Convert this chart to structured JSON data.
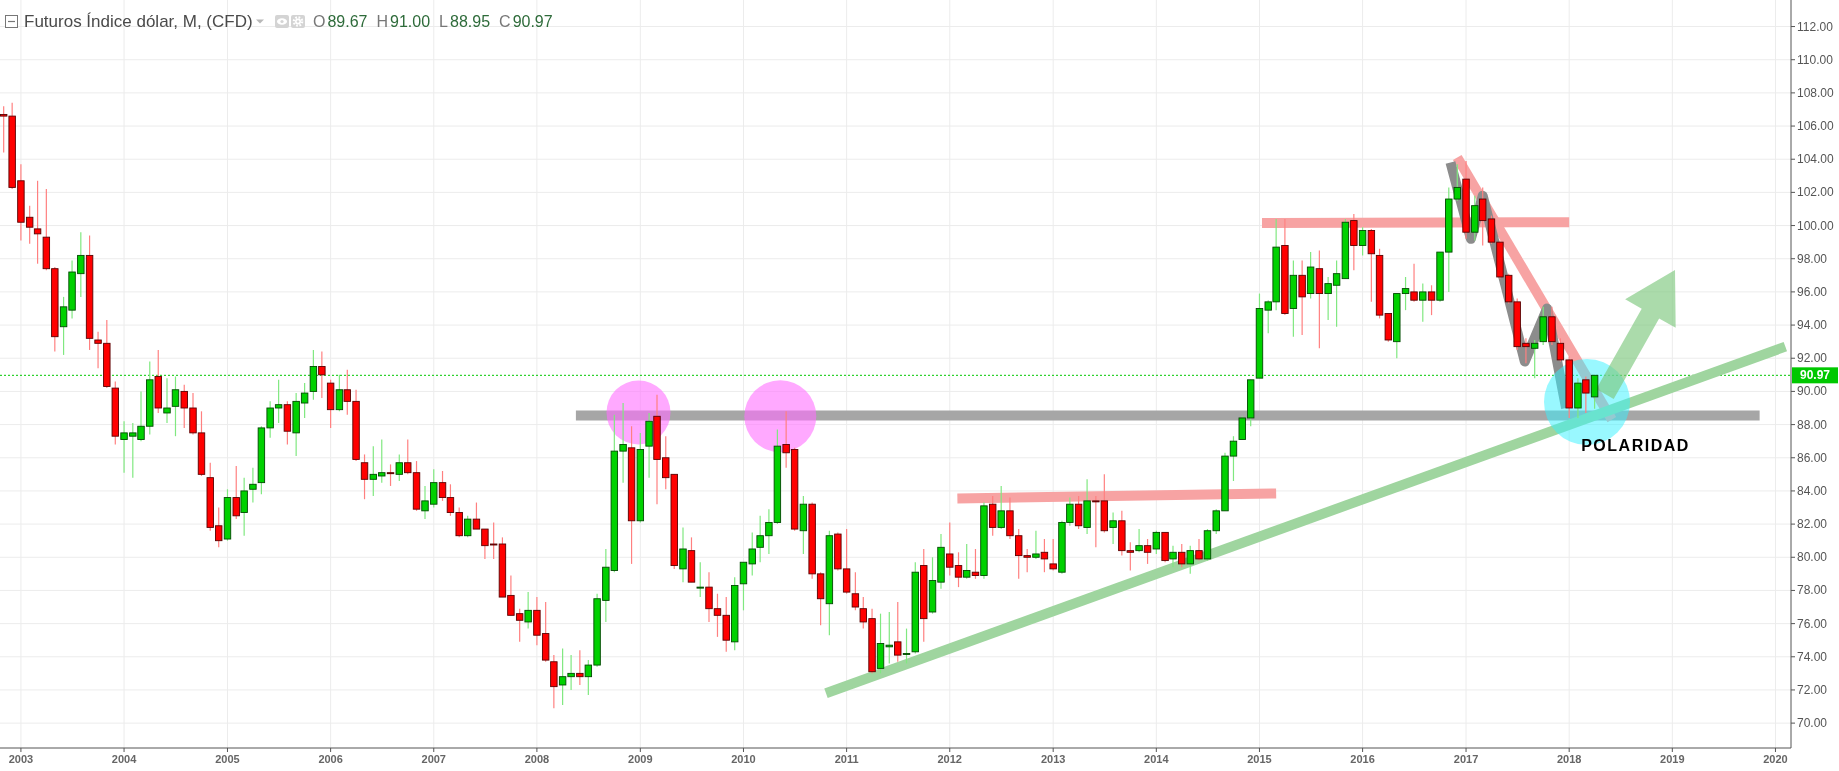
{
  "chart_data": {
    "type": "candlestick",
    "title": "Futuros Índice dólar, M, (CFD)",
    "subtitle": "O89.67 H91.00 L88.95 C90.97",
    "x": [
      "2002-11",
      "2002-12",
      "2003-01",
      "2003-02",
      "2003-03",
      "2003-04",
      "2003-05",
      "2003-06",
      "2003-07",
      "2003-08",
      "2003-09",
      "2003-10",
      "2003-11",
      "2003-12",
      "2004-01",
      "2004-02",
      "2004-03",
      "2004-04",
      "2004-05",
      "2004-06",
      "2004-07",
      "2004-08",
      "2004-09",
      "2004-10",
      "2004-11",
      "2004-12",
      "2005-01",
      "2005-02",
      "2005-03",
      "2005-04",
      "2005-05",
      "2005-06",
      "2005-07",
      "2005-08",
      "2005-09",
      "2005-10",
      "2005-11",
      "2005-12",
      "2006-01",
      "2006-02",
      "2006-03",
      "2006-04",
      "2006-05",
      "2006-06",
      "2006-07",
      "2006-08",
      "2006-09",
      "2006-10",
      "2006-11",
      "2006-12",
      "2007-01",
      "2007-02",
      "2007-03",
      "2007-04",
      "2007-05",
      "2007-06",
      "2007-07",
      "2007-08",
      "2007-09",
      "2007-10",
      "2007-11",
      "2007-12",
      "2008-01",
      "2008-02",
      "2008-03",
      "2008-04",
      "2008-05",
      "2008-06",
      "2008-07",
      "2008-08",
      "2008-09",
      "2008-10",
      "2008-11",
      "2008-12",
      "2009-01",
      "2009-02",
      "2009-03",
      "2009-04",
      "2009-05",
      "2009-06",
      "2009-07",
      "2009-08",
      "2009-09",
      "2009-10",
      "2009-11",
      "2009-12",
      "2010-01",
      "2010-02",
      "2010-03",
      "2010-04",
      "2010-05",
      "2010-06",
      "2010-07",
      "2010-08",
      "2010-09",
      "2010-10",
      "2010-11",
      "2010-12",
      "2011-01",
      "2011-02",
      "2011-03",
      "2011-04",
      "2011-05",
      "2011-06",
      "2011-07",
      "2011-08",
      "2011-09",
      "2011-10",
      "2011-11",
      "2011-12",
      "2012-01",
      "2012-02",
      "2012-03",
      "2012-04",
      "2012-05",
      "2012-06",
      "2012-07",
      "2012-08",
      "2012-09",
      "2012-10",
      "2012-11",
      "2012-12",
      "2013-01",
      "2013-02",
      "2013-03",
      "2013-04",
      "2013-05",
      "2013-06",
      "2013-07",
      "2013-08",
      "2013-09",
      "2013-10",
      "2013-11",
      "2013-12",
      "2014-01",
      "2014-02",
      "2014-03",
      "2014-04",
      "2014-05",
      "2014-06",
      "2014-07",
      "2014-08",
      "2014-09",
      "2014-10",
      "2014-11",
      "2014-12",
      "2015-01",
      "2015-02",
      "2015-03",
      "2015-04",
      "2015-05",
      "2015-06",
      "2015-07",
      "2015-08",
      "2015-09",
      "2015-10",
      "2015-11",
      "2015-12",
      "2016-01",
      "2016-02",
      "2016-03",
      "2016-04",
      "2016-05",
      "2016-06",
      "2016-07",
      "2016-08",
      "2016-09",
      "2016-10",
      "2016-11",
      "2016-12",
      "2017-01",
      "2017-02",
      "2017-03",
      "2017-04",
      "2017-05",
      "2017-06",
      "2017-07",
      "2017-08",
      "2017-09",
      "2017-10",
      "2017-11",
      "2017-12",
      "2018-01",
      "2018-02",
      "2018-03",
      "2018-04"
    ],
    "ohlc": [
      [
        106.7,
        107.2,
        104.4,
        106.6
      ],
      [
        106.6,
        107.4,
        102.2,
        102.3
      ],
      [
        102.7,
        103.7,
        99.1,
        100.2
      ],
      [
        100.5,
        101.2,
        98.9,
        99.9
      ],
      [
        99.8,
        102.7,
        97.7,
        99.5
      ],
      [
        99.3,
        102.2,
        97.3,
        97.4
      ],
      [
        97.4,
        97.5,
        92.4,
        93.3
      ],
      [
        93.9,
        95.7,
        92.2,
        95.1
      ],
      [
        94.9,
        97.9,
        94.4,
        97.2
      ],
      [
        97.1,
        99.6,
        95.7,
        98.2
      ],
      [
        98.2,
        99.4,
        92.5,
        93.2
      ],
      [
        93.1,
        93.6,
        91.4,
        92.9
      ],
      [
        92.9,
        94.3,
        90.2,
        90.3
      ],
      [
        90.2,
        90.6,
        86.8,
        87.3
      ],
      [
        87.1,
        88.2,
        85.1,
        87.5
      ],
      [
        87.3,
        88.1,
        84.8,
        87.5
      ],
      [
        87.1,
        90.0,
        87.0,
        87.9
      ],
      [
        87.9,
        91.8,
        87.4,
        90.7
      ],
      [
        90.9,
        92.5,
        88.7,
        89.0
      ],
      [
        88.7,
        90.8,
        88.1,
        89.0
      ],
      [
        89.1,
        90.9,
        87.3,
        90.1
      ],
      [
        90.0,
        90.4,
        87.8,
        89.0
      ],
      [
        89.0,
        89.9,
        87.4,
        87.5
      ],
      [
        87.5,
        88.8,
        84.9,
        85.0
      ],
      [
        84.8,
        85.7,
        81.6,
        81.8
      ],
      [
        81.9,
        83.0,
        80.6,
        81.0
      ],
      [
        81.1,
        84.1,
        81.0,
        83.6
      ],
      [
        83.6,
        85.5,
        82.3,
        82.5
      ],
      [
        82.7,
        84.8,
        81.3,
        84.0
      ],
      [
        84.1,
        85.4,
        83.3,
        84.4
      ],
      [
        84.5,
        87.9,
        83.8,
        87.8
      ],
      [
        87.8,
        89.4,
        87.2,
        89.0
      ],
      [
        89.0,
        90.7,
        88.1,
        89.2
      ],
      [
        89.2,
        89.4,
        86.8,
        87.6
      ],
      [
        87.5,
        89.9,
        86.1,
        89.4
      ],
      [
        89.3,
        90.5,
        88.4,
        89.9
      ],
      [
        90.0,
        92.5,
        89.5,
        91.5
      ],
      [
        91.5,
        92.4,
        89.6,
        91.0
      ],
      [
        90.5,
        90.7,
        87.8,
        88.9
      ],
      [
        88.9,
        91.0,
        88.8,
        90.1
      ],
      [
        90.1,
        91.3,
        88.6,
        89.4
      ],
      [
        89.4,
        90.1,
        85.8,
        85.9
      ],
      [
        85.7,
        86.2,
        83.5,
        84.7
      ],
      [
        84.7,
        86.7,
        83.7,
        85.0
      ],
      [
        84.9,
        87.1,
        84.5,
        85.1
      ],
      [
        85.1,
        85.6,
        84.3,
        85.1
      ],
      [
        85.0,
        86.2,
        84.6,
        85.7
      ],
      [
        85.7,
        87.1,
        85.0,
        85.1
      ],
      [
        85.1,
        85.8,
        82.8,
        82.9
      ],
      [
        82.8,
        84.3,
        82.3,
        83.4
      ],
      [
        83.2,
        85.3,
        83.0,
        84.5
      ],
      [
        84.5,
        85.2,
        83.4,
        83.6
      ],
      [
        83.6,
        84.4,
        82.5,
        82.7
      ],
      [
        82.7,
        83.0,
        81.2,
        81.3
      ],
      [
        81.3,
        82.5,
        81.2,
        82.3
      ],
      [
        82.3,
        83.3,
        81.7,
        81.7
      ],
      [
        81.7,
        81.7,
        79.9,
        80.7
      ],
      [
        80.8,
        82.1,
        79.9,
        80.8
      ],
      [
        80.8,
        81.2,
        77.6,
        77.6
      ],
      [
        77.7,
        78.9,
        76.5,
        76.5
      ],
      [
        76.6,
        76.9,
        74.9,
        76.2
      ],
      [
        76.1,
        77.9,
        75.7,
        76.8
      ],
      [
        76.8,
        77.6,
        74.7,
        75.3
      ],
      [
        75.4,
        77.3,
        73.7,
        73.8
      ],
      [
        73.7,
        74.1,
        70.9,
        72.2
      ],
      [
        72.3,
        74.5,
        71.1,
        72.8
      ],
      [
        72.8,
        74.1,
        72.0,
        73.0
      ],
      [
        73.0,
        74.4,
        72.3,
        72.8
      ],
      [
        72.8,
        73.8,
        71.7,
        73.5
      ],
      [
        73.5,
        77.8,
        73.4,
        77.5
      ],
      [
        77.4,
        80.5,
        76.1,
        79.4
      ],
      [
        79.2,
        88.6,
        79.1,
        86.4
      ],
      [
        86.4,
        89.3,
        84.5,
        86.8
      ],
      [
        86.6,
        87.9,
        79.6,
        82.2
      ],
      [
        82.2,
        87.5,
        82.1,
        86.5
      ],
      [
        86.7,
        88.7,
        84.8,
        88.2
      ],
      [
        88.5,
        89.8,
        83.2,
        85.9
      ],
      [
        86.0,
        87.3,
        84.1,
        84.8
      ],
      [
        85.0,
        85.0,
        79.3,
        79.5
      ],
      [
        79.3,
        81.8,
        78.5,
        80.5
      ],
      [
        80.4,
        81.2,
        78.5,
        78.5
      ],
      [
        78.2,
        79.7,
        77.6,
        78.2
      ],
      [
        78.2,
        79.1,
        76.1,
        76.9
      ],
      [
        76.9,
        77.8,
        75.2,
        76.5
      ],
      [
        76.5,
        77.6,
        74.3,
        75.0
      ],
      [
        74.9,
        78.8,
        74.4,
        78.3
      ],
      [
        78.4,
        79.7,
        76.8,
        79.7
      ],
      [
        79.6,
        81.5,
        78.9,
        80.5
      ],
      [
        80.6,
        82.5,
        79.7,
        81.3
      ],
      [
        81.3,
        82.9,
        80.2,
        82.1
      ],
      [
        82.1,
        87.7,
        82.0,
        86.7
      ],
      [
        86.8,
        88.8,
        85.4,
        86.3
      ],
      [
        86.5,
        86.6,
        81.6,
        81.7
      ],
      [
        81.6,
        83.7,
        80.2,
        83.2
      ],
      [
        83.2,
        83.3,
        78.7,
        79.0
      ],
      [
        79.0,
        79.1,
        75.9,
        77.5
      ],
      [
        77.2,
        81.6,
        75.3,
        81.3
      ],
      [
        81.4,
        81.5,
        79.2,
        79.3
      ],
      [
        79.3,
        81.7,
        77.8,
        77.9
      ],
      [
        77.8,
        79.1,
        76.8,
        77.0
      ],
      [
        76.9,
        77.6,
        75.7,
        76.1
      ],
      [
        76.3,
        76.9,
        73.0,
        73.1
      ],
      [
        73.3,
        76.6,
        73.0,
        74.8
      ],
      [
        74.6,
        76.7,
        73.6,
        74.7
      ],
      [
        74.9,
        77.3,
        73.7,
        74.1
      ],
      [
        74.2,
        75.7,
        73.6,
        74.2
      ],
      [
        74.3,
        79.7,
        74.2,
        79.1
      ],
      [
        79.5,
        80.5,
        74.9,
        76.3
      ],
      [
        76.7,
        80.0,
        76.6,
        78.6
      ],
      [
        78.5,
        81.4,
        78.1,
        80.6
      ],
      [
        80.2,
        82.1,
        78.9,
        79.4
      ],
      [
        79.5,
        80.3,
        78.2,
        78.8
      ],
      [
        78.8,
        80.8,
        78.7,
        79.2
      ],
      [
        79.1,
        80.5,
        78.7,
        78.9
      ],
      [
        78.9,
        83.3,
        78.7,
        83.1
      ],
      [
        83.2,
        83.7,
        81.3,
        81.8
      ],
      [
        81.8,
        84.3,
        81.7,
        82.8
      ],
      [
        82.8,
        83.6,
        81.1,
        81.3
      ],
      [
        81.3,
        81.7,
        78.7,
        80.1
      ],
      [
        80.1,
        80.5,
        79.1,
        80.0
      ],
      [
        80.0,
        81.6,
        79.9,
        80.2
      ],
      [
        80.3,
        81.1,
        79.1,
        79.9
      ],
      [
        79.6,
        81.1,
        79.2,
        79.3
      ],
      [
        79.1,
        82.2,
        79.0,
        82.1
      ],
      [
        82.1,
        83.6,
        81.9,
        83.2
      ],
      [
        83.2,
        83.7,
        81.7,
        81.9
      ],
      [
        81.8,
        84.7,
        81.4,
        83.4
      ],
      [
        83.4,
        83.7,
        80.6,
        83.4
      ],
      [
        83.4,
        85.0,
        81.5,
        81.6
      ],
      [
        81.8,
        82.7,
        80.8,
        82.2
      ],
      [
        82.2,
        82.8,
        80.1,
        80.4
      ],
      [
        80.4,
        80.9,
        79.2,
        80.3
      ],
      [
        80.4,
        81.7,
        80.3,
        80.7
      ],
      [
        80.7,
        81.1,
        79.6,
        80.3
      ],
      [
        80.5,
        81.6,
        80.2,
        81.5
      ],
      [
        81.5,
        81.5,
        79.7,
        79.8
      ],
      [
        79.9,
        80.7,
        79.4,
        80.3
      ],
      [
        80.3,
        80.8,
        79.4,
        79.6
      ],
      [
        79.6,
        80.7,
        79.0,
        80.4
      ],
      [
        80.4,
        81.1,
        79.8,
        79.9
      ],
      [
        79.9,
        81.7,
        79.8,
        81.6
      ],
      [
        81.6,
        82.9,
        81.4,
        82.8
      ],
      [
        82.8,
        86.3,
        82.8,
        86.1
      ],
      [
        86.1,
        87.3,
        84.6,
        87.0
      ],
      [
        87.1,
        88.5,
        87.1,
        88.4
      ],
      [
        88.4,
        90.7,
        87.9,
        90.7
      ],
      [
        90.8,
        95.9,
        90.8,
        95.0
      ],
      [
        94.9,
        95.5,
        93.5,
        95.4
      ],
      [
        95.4,
        100.4,
        94.9,
        98.7
      ],
      [
        98.8,
        100.4,
        94.6,
        94.7
      ],
      [
        95.0,
        97.9,
        93.3,
        97.0
      ],
      [
        97.0,
        97.9,
        93.4,
        95.7
      ],
      [
        95.9,
        98.4,
        95.6,
        97.5
      ],
      [
        97.4,
        98.5,
        92.6,
        95.9
      ],
      [
        95.9,
        96.9,
        94.3,
        96.5
      ],
      [
        96.4,
        97.9,
        93.9,
        97.1
      ],
      [
        96.8,
        100.4,
        96.8,
        100.2
      ],
      [
        100.3,
        100.7,
        97.3,
        98.8
      ],
      [
        98.8,
        99.9,
        98.2,
        99.7
      ],
      [
        99.7,
        99.8,
        95.4,
        98.3
      ],
      [
        98.2,
        98.6,
        94.4,
        94.6
      ],
      [
        94.7,
        94.7,
        93.0,
        93.1
      ],
      [
        93.0,
        95.9,
        92.0,
        95.9
      ],
      [
        95.9,
        96.9,
        94.9,
        96.2
      ],
      [
        96.0,
        97.7,
        95.4,
        95.5
      ],
      [
        95.5,
        96.5,
        94.2,
        96.0
      ],
      [
        96.0,
        96.4,
        94.6,
        95.5
      ],
      [
        95.5,
        98.4,
        95.4,
        98.4
      ],
      [
        98.4,
        102.3,
        96.0,
        101.6
      ],
      [
        101.6,
        103.7,
        101.5,
        102.3
      ],
      [
        102.8,
        103.9,
        99.2,
        99.6
      ],
      [
        99.6,
        101.8,
        99.1,
        101.2
      ],
      [
        101.6,
        102.3,
        98.8,
        100.3
      ],
      [
        100.4,
        100.6,
        98.9,
        99.0
      ],
      [
        99.0,
        99.1,
        96.8,
        96.9
      ],
      [
        97.0,
        97.1,
        95.3,
        95.4
      ],
      [
        95.4,
        95.6,
        92.5,
        92.7
      ],
      [
        92.9,
        93.2,
        91.7,
        92.7
      ],
      [
        92.6,
        93.1,
        90.8,
        92.9
      ],
      [
        93.0,
        95.1,
        92.8,
        94.5
      ],
      [
        94.5,
        95.1,
        92.8,
        93.0
      ],
      [
        92.9,
        93.2,
        91.8,
        91.9
      ],
      [
        91.9,
        92.1,
        88.4,
        89.0
      ],
      [
        89.0,
        90.8,
        88.4,
        90.5
      ],
      [
        90.7,
        90.9,
        88.7,
        89.9
      ],
      [
        89.67,
        91.0,
        88.95,
        90.97
      ]
    ],
    "colors": [
      "#ff0000",
      "#ff0000",
      "#ff0000",
      "#ff0000",
      "#ff0000",
      "#ff0000",
      "#ff0000",
      "#00d100",
      "#00d100",
      "#00d100",
      "#ff0000",
      "#ff0000",
      "#ff0000",
      "#ff0000",
      "#00d100",
      "#00d100",
      "#00d100",
      "#00d100",
      "#ff0000",
      "#00d100",
      "#00d100",
      "#ff0000",
      "#ff0000",
      "#ff0000",
      "#ff0000",
      "#ff0000",
      "#00d100",
      "#ff0000",
      "#00d100",
      "#00d100",
      "#00d100",
      "#00d100",
      "#00d100",
      "#ff0000",
      "#00d100",
      "#00d100",
      "#00d100",
      "#ff0000",
      "#ff0000",
      "#00d100",
      "#ff0000",
      "#ff0000",
      "#ff0000",
      "#00d100",
      "#00d100",
      "#ff0000",
      "#00d100",
      "#ff0000",
      "#ff0000",
      "#00d100",
      "#00d100",
      "#ff0000",
      "#ff0000",
      "#ff0000",
      "#00d100",
      "#ff0000",
      "#ff0000",
      "#ff0000",
      "#ff0000",
      "#ff0000",
      "#ff0000",
      "#00d100",
      "#ff0000",
      "#ff0000",
      "#ff0000",
      "#00d100",
      "#00d100",
      "#ff0000",
      "#00d100",
      "#00d100",
      "#00d100",
      "#00d100",
      "#00d100",
      "#ff0000",
      "#00d100",
      "#00d100",
      "#ff0000",
      "#ff0000",
      "#ff0000",
      "#00d100",
      "#ff0000",
      "#00d100",
      "#ff0000",
      "#ff0000",
      "#ff0000",
      "#00d100",
      "#00d100",
      "#00d100",
      "#00d100",
      "#00d100",
      "#00d100",
      "#ff0000",
      "#ff0000",
      "#00d100",
      "#ff0000",
      "#ff0000",
      "#00d100",
      "#ff0000",
      "#ff0000",
      "#ff0000",
      "#ff0000",
      "#ff0000",
      "#00d100",
      "#00d100",
      "#ff0000",
      "#00d100",
      "#00d100",
      "#ff0000",
      "#00d100",
      "#00d100",
      "#ff0000",
      "#ff0000",
      "#00d100",
      "#ff0000",
      "#00d100",
      "#ff0000",
      "#00d100",
      "#ff0000",
      "#ff0000",
      "#ff0000",
      "#00d100",
      "#ff0000",
      "#ff0000",
      "#00d100",
      "#00d100",
      "#ff0000",
      "#00d100",
      "#ff0000",
      "#ff0000",
      "#00d100",
      "#ff0000",
      "#ff0000",
      "#00d100",
      "#ff0000",
      "#00d100",
      "#ff0000",
      "#00d100",
      "#ff0000",
      "#00d100",
      "#ff0000",
      "#00d100",
      "#00d100",
      "#00d100",
      "#00d100",
      "#00d100",
      "#00d100",
      "#00d100",
      "#00d100",
      "#00d100",
      "#ff0000",
      "#00d100",
      "#ff0000",
      "#00d100",
      "#ff0000",
      "#00d100",
      "#00d100",
      "#00d100",
      "#ff0000",
      "#00d100",
      "#ff0000",
      "#ff0000",
      "#ff0000",
      "#00d100",
      "#00d100",
      "#ff0000",
      "#00d100",
      "#ff0000",
      "#00d100",
      "#00d100",
      "#00d100",
      "#ff0000",
      "#00d100",
      "#ff0000",
      "#ff0000",
      "#ff0000",
      "#ff0000",
      "#ff0000",
      "#ff0000",
      "#00d100",
      "#00d100",
      "#ff0000",
      "#ff0000",
      "#ff0000",
      "#00d100",
      "#ff0000",
      "#00d100"
    ],
    "series": [
      {
        "type": "line",
        "color": "#a6a6a6",
        "x": [
          "2008-05-18",
          "2019-11-06"
        ],
        "values": [
          88.55,
          88.55
        ]
      },
      {
        "type": "line",
        "color": "#f7a3a3",
        "x": [
          "2012-01-28",
          "2015-03-01"
        ],
        "values": [
          83.55,
          83.85
        ]
      },
      {
        "type": "line",
        "color": "#f7a3a3",
        "x": [
          "2015-01-10",
          "2018-01-01"
        ],
        "values": [
          100.15,
          100.2
        ]
      },
      {
        "type": "line",
        "color": "#f7a3a3",
        "x": [
          "2016-12-01",
          "2018-06-01"
        ],
        "values": [
          104.1,
          88.3
        ]
      },
      {
        "type": "line",
        "color": "#9fd59f",
        "x": [
          "2010-10-20",
          "2020-02-05"
        ],
        "values": [
          71.8,
          92.7
        ]
      },
      {
        "type": "line",
        "color": "#8c8c8c",
        "x": [
          "2016-11-07",
          "2017-01-18",
          "2017-03-01",
          "2017-07-28",
          "2017-10-15",
          "2017-12-21"
        ],
        "values": [
          103.8,
          99.2,
          101.8,
          91.8,
          95.0,
          89.0
        ]
      }
    ],
    "xlim": [
      "2002-10-19",
      "2020-02-25"
    ],
    "ylim": [
      68.5,
      113.6
    ],
    "xticks": [
      "2003",
      "2004",
      "2005",
      "2006",
      "2007",
      "2008",
      "2009",
      "2010",
      "2011",
      "2012",
      "2013",
      "2014",
      "2015",
      "2016",
      "2017",
      "2018",
      "2019",
      "2020"
    ],
    "yticks": [
      {
        "value": 70,
        "label": "70.00"
      },
      {
        "value": 72,
        "label": "72.00"
      },
      {
        "value": 74,
        "label": "74.00"
      },
      {
        "value": 76,
        "label": "76.00"
      },
      {
        "value": 78,
        "label": "78.00"
      },
      {
        "value": 80,
        "label": "80.00"
      },
      {
        "value": 82,
        "label": "82.00"
      },
      {
        "value": 84,
        "label": "84.00"
      },
      {
        "value": 86,
        "label": "86.00"
      },
      {
        "value": 88,
        "label": "88.00"
      },
      {
        "value": 90,
        "label": "90.00"
      },
      {
        "value": 92,
        "label": "92.00"
      },
      {
        "value": 94,
        "label": "94.00"
      },
      {
        "value": 96,
        "label": "96.00"
      },
      {
        "value": 98,
        "label": "98.00"
      },
      {
        "value": 100,
        "label": "100.00"
      },
      {
        "value": 102,
        "label": "102.00"
      },
      {
        "value": 104,
        "label": "104.00"
      },
      {
        "value": 106,
        "label": "106.00"
      },
      {
        "value": 108,
        "label": "108.00"
      },
      {
        "value": 110,
        "label": "110.00"
      },
      {
        "value": 112,
        "label": "112.00"
      }
    ],
    "grid": true,
    "ref_lines": [
      {
        "axis": "y",
        "value": 90.97,
        "label": "90.97",
        "color": "#00c800",
        "line_style": "dotted"
      }
    ],
    "annotations": [
      "POLARIDAD"
    ]
  }
}
